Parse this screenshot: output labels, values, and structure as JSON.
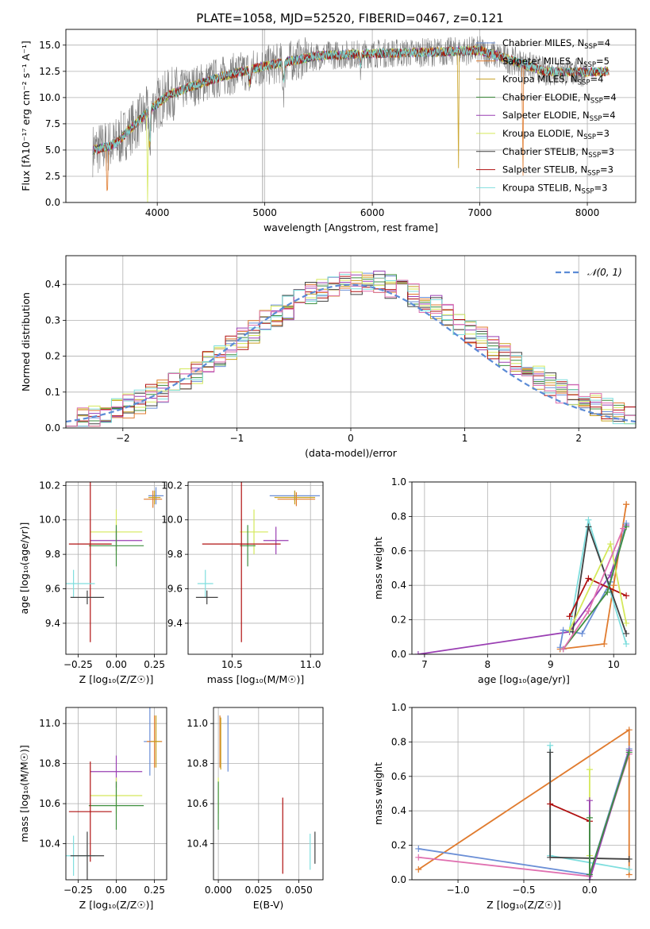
{
  "figure": {
    "title": "PLATE=1058, MJD=52520, FIBERID=0467, z=0.121"
  },
  "colors": {
    "Chabrier MILES": "#6b8fd6",
    "Salpeter MILES": "#e07b2e",
    "Kroupa MILES": "#c8a020",
    "Chabrier ELODIE": "#3f8f3f",
    "Salpeter ELODIE": "#9a3fb3",
    "Kroupa ELODIE": "#d4e85a",
    "Chabrier STELIB": "#404040",
    "Salpeter STELIB": "#b01010",
    "Kroupa STELIB": "#7fdede",
    "data": "#808080",
    "pink": "#e070b0",
    "gaussian": "#5b8bd6"
  },
  "chart_data": [
    {
      "id": "spectrum",
      "type": "line",
      "title": "PLATE=1058, MJD=52520, FIBERID=0467, z=0.121",
      "xlabel": "wavelength [Angstrom, rest frame]",
      "ylabel": "Flux [fλ10⁻¹⁷ erg cm⁻² s⁻¹ A⁻¹]",
      "xlim": [
        3150,
        8450
      ],
      "ylim": [
        0,
        16.5
      ],
      "xticks": [
        4000,
        5000,
        6000,
        7000,
        8000
      ],
      "yticks": [
        0.0,
        2.5,
        5.0,
        7.5,
        10.0,
        12.5,
        15.0
      ],
      "legend": "right",
      "legend_entries": [
        {
          "label": "Chabrier MILES, NSSP=4",
          "base": "Chabrier MILES, N",
          "sub": "SSP",
          "tail": "=4",
          "color": "#6b8fd6"
        },
        {
          "label": "Salpeter MILES, NSSP=5",
          "base": "Salpeter MILES, N",
          "sub": "SSP",
          "tail": "=5",
          "color": "#e07b2e"
        },
        {
          "label": "Kroupa MILES, NSSP=4",
          "base": "Kroupa MILES, N",
          "sub": "SSP",
          "tail": "=4",
          "color": "#c8a020"
        },
        {
          "label": "Chabrier ELODIE, NSSP=4",
          "base": "Chabrier ELODIE, N",
          "sub": "SSP",
          "tail": "=4",
          "color": "#3f8f3f"
        },
        {
          "label": "Salpeter ELODIE, NSSP=4",
          "base": "Salpeter ELODIE, N",
          "sub": "SSP",
          "tail": "=4",
          "color": "#9a3fb3"
        },
        {
          "label": "Kroupa ELODIE, NSSP=3",
          "base": "Kroupa ELODIE, N",
          "sub": "SSP",
          "tail": "=3",
          "color": "#d4e85a"
        },
        {
          "label": "Chabrier STELIB, NSSP=3",
          "base": "Chabrier STELIB, N",
          "sub": "SSP",
          "tail": "=3",
          "color": "#404040"
        },
        {
          "label": "Salpeter STELIB, NSSP=3",
          "base": "Salpeter STELIB, N",
          "sub": "SSP",
          "tail": "=3",
          "color": "#b01010"
        },
        {
          "label": "Kroupa STELIB, NSSP=3",
          "base": "Kroupa STELIB, N",
          "sub": "SSP",
          "tail": "=3",
          "color": "#7fdede"
        }
      ],
      "continuum_x": [
        3400,
        3600,
        3800,
        3950,
        4100,
        4300,
        4600,
        5000,
        5500,
        6000,
        6500,
        7000,
        7400,
        7600,
        8000,
        8200
      ],
      "continuum_y": [
        5.0,
        5.5,
        7.5,
        9.0,
        10.2,
        11.0,
        12.0,
        13.0,
        14.0,
        14.2,
        14.3,
        14.5,
        13.2,
        12.5,
        12.4,
        12.5
      ],
      "model_range": [
        3400,
        8200
      ],
      "data_range": [
        3400,
        8000
      ],
      "dips": [
        {
          "x": 3535,
          "depth": 5.0,
          "width": 8,
          "series": "Salpeter MILES"
        },
        {
          "x": 3910,
          "depth": 10.0,
          "width": 6,
          "series": "Kroupa ELODIE"
        },
        {
          "x": 3930,
          "depth": 5.5,
          "width": 8,
          "series": "all"
        },
        {
          "x": 4860,
          "depth": 2.0,
          "width": 10,
          "series": "all"
        },
        {
          "x": 5175,
          "depth": 2.5,
          "width": 12,
          "series": "all"
        },
        {
          "x": 5890,
          "depth": 1.5,
          "width": 10,
          "series": "all"
        },
        {
          "x": 6800,
          "depth": 14.5,
          "width": 4,
          "series": "Kroupa MILES"
        },
        {
          "x": 7400,
          "depth": 13.5,
          "width": 4,
          "series": "Salpeter MILES"
        }
      ],
      "data_spikes": [
        {
          "x": 4980,
          "top": 16.5,
          "bottom": 0
        }
      ]
    },
    {
      "id": "residuals",
      "type": "histogram",
      "xlabel": "(data-model)/error",
      "ylabel": "Normed distribution",
      "xlim": [
        -2.5,
        2.5
      ],
      "ylim": [
        0,
        0.48
      ],
      "xticks": [
        -2,
        -1,
        0,
        1,
        2
      ],
      "yticks": [
        0.0,
        0.1,
        0.2,
        0.3,
        0.4
      ],
      "bin_width": 0.1,
      "bin_range": [
        -2.5,
        2.5
      ],
      "gaussian": {
        "label": "𝒩(0, 1)",
        "mu": 0,
        "sigma": 1
      },
      "legend": "top-right",
      "series": [
        "Chabrier MILES",
        "Salpeter MILES",
        "Kroupa MILES",
        "Chabrier ELODIE",
        "Salpeter ELODIE",
        "Kroupa ELODIE",
        "Chabrier STELIB",
        "Salpeter STELIB",
        "Kroupa STELIB",
        "pink"
      ]
    },
    {
      "id": "age_vs_Z",
      "type": "errorbar",
      "xlabel": "Z [log₁₀(Z/Z☉)]",
      "ylabel": "age  [log₁₀(age/yr)]",
      "xlim": [
        -0.33,
        0.33
      ],
      "ylim": [
        9.22,
        10.22
      ],
      "xticks": [
        -0.25,
        0.0,
        0.25
      ],
      "xticklabels": [
        "−0.25",
        "0.00",
        "0.25"
      ],
      "yticks": [
        9.4,
        9.6,
        9.8,
        10.0,
        10.2
      ],
      "points": [
        {
          "series": "Chabrier MILES",
          "x": 0.26,
          "y": 10.14,
          "xerr": 0.05,
          "yerr": 0.05
        },
        {
          "series": "Salpeter MILES",
          "x": 0.24,
          "y": 10.12,
          "xerr": 0.06,
          "yerr": 0.05
        },
        {
          "series": "Kroupa MILES",
          "x": 0.25,
          "y": 10.13,
          "xerr": 0.04,
          "yerr": 0.04
        },
        {
          "series": "Kroupa ELODIE",
          "x": 0.0,
          "y": 9.93,
          "xerr": 0.17,
          "yerr": 0.13
        },
        {
          "series": "Salpeter ELODIE",
          "x": 0.0,
          "y": 9.88,
          "xerr": 0.17,
          "yerr": 0.06
        },
        {
          "series": "Chabrier ELODIE",
          "x": 0.0,
          "y": 9.85,
          "xerr": 0.18,
          "yerr": 0.12
        },
        {
          "series": "Salpeter STELIB",
          "x": -0.17,
          "y": 9.86,
          "xerr": 0.14,
          "yerr": 0.57
        },
        {
          "series": "Kroupa STELIB",
          "x": -0.28,
          "y": 9.63,
          "xerr": 0.14,
          "yerr": 0.08
        },
        {
          "series": "Chabrier STELIB",
          "x": -0.19,
          "y": 9.55,
          "xerr": 0.11,
          "yerr": 0.04
        }
      ]
    },
    {
      "id": "age_vs_mass",
      "type": "errorbar",
      "xlabel": "mass [log₁₀(M/M☉)]",
      "xlim": [
        10.22,
        11.08
      ],
      "ylim": [
        9.22,
        10.22
      ],
      "xticks": [
        10.5,
        11.0
      ],
      "xticklabels": [
        "10.5",
        "11.0"
      ],
      "yticks": [
        9.4,
        9.6,
        9.8,
        10.0,
        10.2
      ],
      "points": [
        {
          "series": "Chabrier MILES",
          "x": 10.9,
          "y": 10.14,
          "xerr": 0.16,
          "yerr": 0.03
        },
        {
          "series": "Salpeter MILES",
          "x": 10.91,
          "y": 10.12,
          "xerr": 0.12,
          "yerr": 0.04
        },
        {
          "series": "Kroupa MILES",
          "x": 10.9,
          "y": 10.13,
          "xerr": 0.13,
          "yerr": 0.04
        },
        {
          "series": "Kroupa ELODIE",
          "x": 10.64,
          "y": 9.93,
          "xerr": 0.09,
          "yerr": 0.13
        },
        {
          "series": "Salpeter ELODIE",
          "x": 10.78,
          "y": 9.88,
          "xerr": 0.08,
          "yerr": 0.08
        },
        {
          "series": "Chabrier ELODIE",
          "x": 10.6,
          "y": 9.85,
          "xerr": 0.05,
          "yerr": 0.12
        },
        {
          "series": "Salpeter STELIB",
          "x": 10.56,
          "y": 9.86,
          "xerr": 0.25,
          "yerr": 0.57
        },
        {
          "series": "Kroupa STELIB",
          "x": 10.33,
          "y": 9.63,
          "xerr": 0.05,
          "yerr": 0.08
        },
        {
          "series": "Chabrier STELIB",
          "x": 10.34,
          "y": 9.55,
          "xerr": 0.07,
          "yerr": 0.04
        }
      ]
    },
    {
      "id": "weight_vs_age",
      "type": "line",
      "xlabel": "age  [log₁₀(age/yr)]",
      "ylabel": "mass weight",
      "xlim": [
        6.8,
        10.35
      ],
      "ylim": [
        0,
        1.0
      ],
      "xticks": [
        7,
        8,
        9,
        10
      ],
      "yticks": [
        0.0,
        0.2,
        0.4,
        0.6,
        0.8,
        1.0
      ],
      "series": [
        {
          "name": "Salpeter ELODIE",
          "x": [
            6.9,
            9.3,
            9.95,
            10.2
          ],
          "y": [
            0.0,
            0.13,
            0.46,
            0.75
          ]
        },
        {
          "name": "Salpeter MILES",
          "x": [
            9.15,
            9.85,
            10.0,
            10.2,
            10.2
          ],
          "y": [
            0.03,
            0.06,
            0.4,
            0.87,
            0.87
          ]
        },
        {
          "name": "Chabrier MILES",
          "x": [
            9.15,
            9.2,
            9.5,
            9.95,
            10.2
          ],
          "y": [
            0.04,
            0.14,
            0.12,
            0.42,
            0.76
          ]
        },
        {
          "name": "Kroupa STELIB",
          "x": [
            9.3,
            9.6,
            10.2
          ],
          "y": [
            0.14,
            0.78,
            0.06
          ]
        },
        {
          "name": "Chabrier STELIB",
          "x": [
            9.35,
            9.6,
            10.2
          ],
          "y": [
            0.13,
            0.74,
            0.12
          ]
        },
        {
          "name": "Salpeter STELIB",
          "x": [
            9.3,
            9.6,
            10.2
          ],
          "y": [
            0.22,
            0.44,
            0.34
          ]
        },
        {
          "name": "Kroupa ELODIE",
          "x": [
            9.3,
            9.95,
            10.2
          ],
          "y": [
            0.14,
            0.64,
            0.18
          ]
        },
        {
          "name": "Chabrier ELODIE",
          "x": [
            9.2,
            9.9,
            10.2
          ],
          "y": [
            0.03,
            0.36,
            0.74
          ]
        },
        {
          "name": "pink",
          "x": [
            9.2,
            9.6,
            10.15
          ],
          "y": [
            0.03,
            0.25,
            0.73
          ]
        }
      ]
    },
    {
      "id": "mass_vs_Z",
      "type": "errorbar",
      "xlabel": "Z [log₁₀(Z/Z☉)]",
      "ylabel": "mass [log₁₀(M/M☉)]",
      "xlim": [
        -0.33,
        0.33
      ],
      "ylim": [
        10.22,
        11.08
      ],
      "xticks": [
        -0.25,
        0.0,
        0.25
      ],
      "xticklabels": [
        "−0.25",
        "0.00",
        "0.25"
      ],
      "yticks": [
        10.4,
        10.6,
        10.8,
        11.0
      ],
      "points": [
        {
          "series": "Chabrier MILES",
          "x": 0.22,
          "y": 10.91,
          "xerr": 0.04,
          "yerr": 0.17
        },
        {
          "series": "Salpeter MILES",
          "x": 0.25,
          "y": 10.91,
          "xerr": 0.05,
          "yerr": 0.13
        },
        {
          "series": "Kroupa MILES",
          "x": 0.26,
          "y": 10.91,
          "xerr": 0.03,
          "yerr": 0.13
        },
        {
          "series": "Salpeter ELODIE",
          "x": 0.0,
          "y": 10.76,
          "xerr": 0.17,
          "yerr": 0.08
        },
        {
          "series": "Kroupa ELODIE",
          "x": 0.0,
          "y": 10.64,
          "xerr": 0.17,
          "yerr": 0.09
        },
        {
          "series": "Chabrier ELODIE",
          "x": 0.0,
          "y": 10.59,
          "xerr": 0.18,
          "yerr": 0.12
        },
        {
          "series": "Salpeter STELIB",
          "x": -0.17,
          "y": 10.56,
          "xerr": 0.14,
          "yerr": 0.25
        },
        {
          "series": "Kroupa STELIB",
          "x": -0.28,
          "y": 10.34,
          "xerr": 0.14,
          "yerr": 0.1
        },
        {
          "series": "Chabrier STELIB",
          "x": -0.19,
          "y": 10.34,
          "xerr": 0.11,
          "yerr": 0.12
        }
      ]
    },
    {
      "id": "mass_vs_ebv",
      "type": "errorbar",
      "xlabel": "E(B-V)",
      "xlim": [
        -0.003,
        0.065
      ],
      "ylim": [
        10.22,
        11.08
      ],
      "xticks": [
        0.0,
        0.025,
        0.05
      ],
      "xticklabels": [
        "0.000",
        "0.025",
        "0.050"
      ],
      "yticks": [
        10.4,
        10.6,
        10.8,
        11.0
      ],
      "points": [
        {
          "series": "Chabrier MILES",
          "x": 0.006,
          "y": 10.9,
          "xerr": 0,
          "yerr": 0.14
        },
        {
          "series": "Salpeter MILES",
          "x": 0.001,
          "y": 10.91,
          "xerr": 0,
          "yerr": 0.13
        },
        {
          "series": "Kroupa MILES",
          "x": 0.0015,
          "y": 10.9,
          "xerr": 0,
          "yerr": 0.13
        },
        {
          "series": "Kroupa ELODIE",
          "x": 0.0,
          "y": 10.64,
          "xerr": 0,
          "yerr": 0.09
        },
        {
          "series": "Chabrier ELODIE",
          "x": 0.0,
          "y": 10.59,
          "xerr": 0,
          "yerr": 0.12
        },
        {
          "series": "Salpeter STELIB",
          "x": 0.04,
          "y": 10.44,
          "xerr": 0,
          "yerr": 0.19
        },
        {
          "series": "Kroupa STELIB",
          "x": 0.057,
          "y": 10.36,
          "xerr": 0,
          "yerr": 0.09
        },
        {
          "series": "Chabrier STELIB",
          "x": 0.06,
          "y": 10.38,
          "xerr": 0,
          "yerr": 0.08
        }
      ]
    },
    {
      "id": "weight_vs_Z",
      "type": "line",
      "xlabel": "Z [log₁₀(Z/Z☉)]",
      "ylabel": "mass weight",
      "xlim": [
        -1.35,
        0.35
      ],
      "ylim": [
        0,
        1.0
      ],
      "xticks": [
        -1.0,
        -0.5,
        0.0
      ],
      "xticklabels": [
        "−1.0",
        "−0.5",
        "0.0"
      ],
      "yticks": [
        0.0,
        0.2,
        0.4,
        0.6,
        0.8,
        1.0
      ],
      "series": [
        {
          "name": "Salpeter MILES",
          "x": [
            -1.3,
            0.3,
            0.3
          ],
          "y": [
            0.06,
            0.87,
            0.03
          ]
        },
        {
          "name": "Chabrier MILES",
          "x": [
            -1.3,
            0.0,
            0.3
          ],
          "y": [
            0.18,
            0.03,
            0.76
          ]
        },
        {
          "name": "pink",
          "x": [
            -1.3,
            0.0,
            0.3
          ],
          "y": [
            0.13,
            0.02,
            0.73
          ]
        },
        {
          "name": "Kroupa STELIB",
          "x": [
            -0.3,
            -0.3,
            0.3
          ],
          "y": [
            0.78,
            0.14,
            0.06
          ]
        },
        {
          "name": "Chabrier STELIB",
          "x": [
            -0.3,
            -0.3,
            0.3
          ],
          "y": [
            0.74,
            0.13,
            0.12
          ]
        },
        {
          "name": "Salpeter STELIB",
          "x": [
            -0.3,
            0.0
          ],
          "y": [
            0.44,
            0.34
          ]
        },
        {
          "name": "Kroupa ELODIE",
          "x": [
            0.0,
            0.0
          ],
          "y": [
            0.64,
            0.14
          ]
        },
        {
          "name": "Salpeter ELODIE",
          "x": [
            0.0,
            0.0,
            0.3
          ],
          "y": [
            0.46,
            0.0,
            0.75
          ]
        },
        {
          "name": "Chabrier ELODIE",
          "x": [
            0.0,
            0.0,
            0.3
          ],
          "y": [
            0.36,
            0.03,
            0.74
          ]
        }
      ]
    }
  ]
}
